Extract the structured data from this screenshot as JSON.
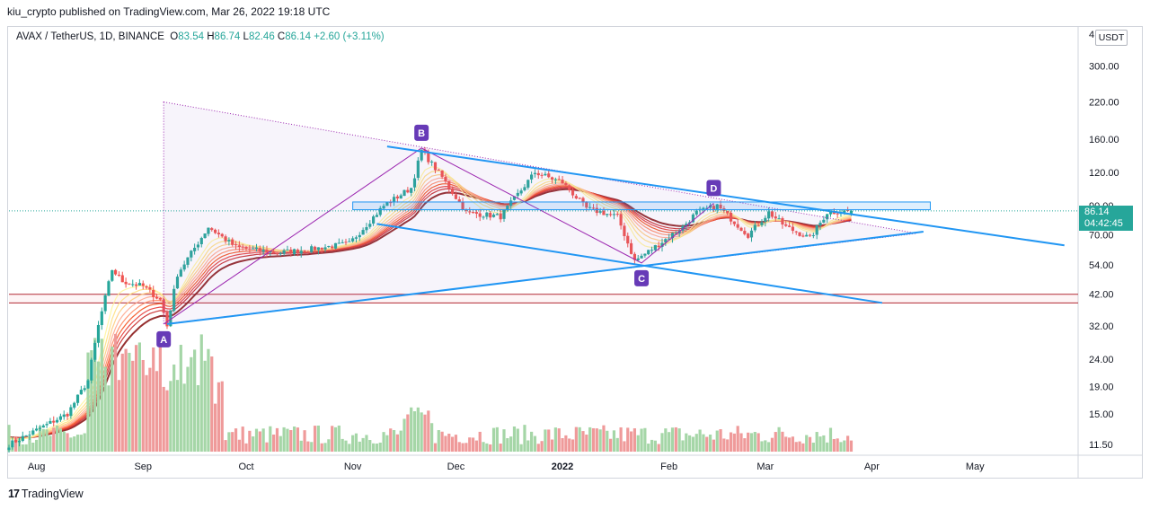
{
  "header": {
    "published_line": "kiu_crypto published on TradingView.com, Mar 26, 2022 19:18 UTC"
  },
  "legend": {
    "symbol": "AVAX / TetherUS, 1D, BINANCE",
    "open_label": "O",
    "open": "83.54",
    "high_label": "H",
    "high": "86.74",
    "low_label": "L",
    "low": "82.46",
    "close_label": "C",
    "close": "86.14",
    "change": "+2.60 (+3.11%)"
  },
  "currency": "USDT",
  "price_tag": {
    "price": "86.14",
    "countdown": "04:42:45"
  },
  "brand": {
    "mark": "17",
    "name": "TradingView"
  },
  "colors": {
    "up": "#26a69a",
    "down": "#ef5350",
    "vol_up": "#a5d6a7",
    "vol_down": "#ef9a9a",
    "trendline": "#2196f3",
    "pattern": "#9c27b0",
    "resistance": "#b22833"
  },
  "chart_data": {
    "type": "candlestick",
    "scale": "log",
    "ylim": [
      10.5,
      420
    ],
    "y_ticks": [
      "300.00",
      "220.00",
      "160.00",
      "120.00",
      "90.00",
      "70.00",
      "54.00",
      "42.00",
      "32.00",
      "24.00",
      "19.00",
      "15.00",
      "11.50"
    ],
    "y_top_tick": "4",
    "x_ticks": [
      {
        "label": "Aug",
        "bold": false
      },
      {
        "label": "Sep",
        "bold": false
      },
      {
        "label": "Oct",
        "bold": false
      },
      {
        "label": "Nov",
        "bold": false
      },
      {
        "label": "Dec",
        "bold": false
      },
      {
        "label": "2022",
        "bold": true
      },
      {
        "label": "Feb",
        "bold": false
      },
      {
        "label": "Mar",
        "bold": false
      },
      {
        "label": "Apr",
        "bold": false
      },
      {
        "label": "May",
        "bold": false
      }
    ],
    "close_anchors": [
      {
        "date": "2021-07-24",
        "close": 11.5
      },
      {
        "date": "2021-08-10",
        "close": 15.0
      },
      {
        "date": "2021-08-16",
        "close": 20.0
      },
      {
        "date": "2021-08-19",
        "close": 32.0
      },
      {
        "date": "2021-08-23",
        "close": 52.0
      },
      {
        "date": "2021-08-26",
        "close": 47.0
      },
      {
        "date": "2021-09-01",
        "close": 45.0
      },
      {
        "date": "2021-09-06",
        "close": 40.0
      },
      {
        "date": "2021-09-08",
        "close": 32.0
      },
      {
        "date": "2021-09-11",
        "close": 50.0
      },
      {
        "date": "2021-09-20",
        "close": 75.0
      },
      {
        "date": "2021-09-28",
        "close": 63.0
      },
      {
        "date": "2021-10-10",
        "close": 60.0
      },
      {
        "date": "2021-10-20",
        "close": 62.0
      },
      {
        "date": "2021-10-31",
        "close": 65.0
      },
      {
        "date": "2021-11-10",
        "close": 90.0
      },
      {
        "date": "2021-11-18",
        "close": 105.0
      },
      {
        "date": "2021-11-21",
        "close": 145.0
      },
      {
        "date": "2021-11-27",
        "close": 115.0
      },
      {
        "date": "2021-12-04",
        "close": 85.0
      },
      {
        "date": "2021-12-14",
        "close": 82.0
      },
      {
        "date": "2021-12-24",
        "close": 120.0
      },
      {
        "date": "2022-01-01",
        "close": 110.0
      },
      {
        "date": "2022-01-08",
        "close": 88.0
      },
      {
        "date": "2022-01-17",
        "close": 82.0
      },
      {
        "date": "2022-01-22",
        "close": 56.0
      },
      {
        "date": "2022-01-27",
        "close": 62.0
      },
      {
        "date": "2022-02-05",
        "close": 75.0
      },
      {
        "date": "2022-02-09",
        "close": 85.0
      },
      {
        "date": "2022-02-15",
        "close": 90.0
      },
      {
        "date": "2022-02-24",
        "close": 70.0
      },
      {
        "date": "2022-03-02",
        "close": 85.0
      },
      {
        "date": "2022-03-07",
        "close": 75.0
      },
      {
        "date": "2022-03-14",
        "close": 68.0
      },
      {
        "date": "2022-03-19",
        "close": 85.0
      },
      {
        "date": "2022-03-26",
        "close": 86.14
      }
    ],
    "last_ohlc": {
      "open": 83.54,
      "high": 86.74,
      "low": 82.46,
      "close": 86.14
    },
    "annotations": {
      "points": [
        {
          "label": "A",
          "date": "2021-09-07",
          "price": 32.5
        },
        {
          "label": "B",
          "date": "2021-11-21",
          "price": 148.0
        },
        {
          "label": "C",
          "date": "2022-01-24",
          "price": 55.0
        },
        {
          "label": "D",
          "date": "2022-02-14",
          "price": 92.0
        }
      ],
      "resistance_zone": [
        87,
        93
      ],
      "support_zone": [
        39,
        42
      ]
    }
  }
}
